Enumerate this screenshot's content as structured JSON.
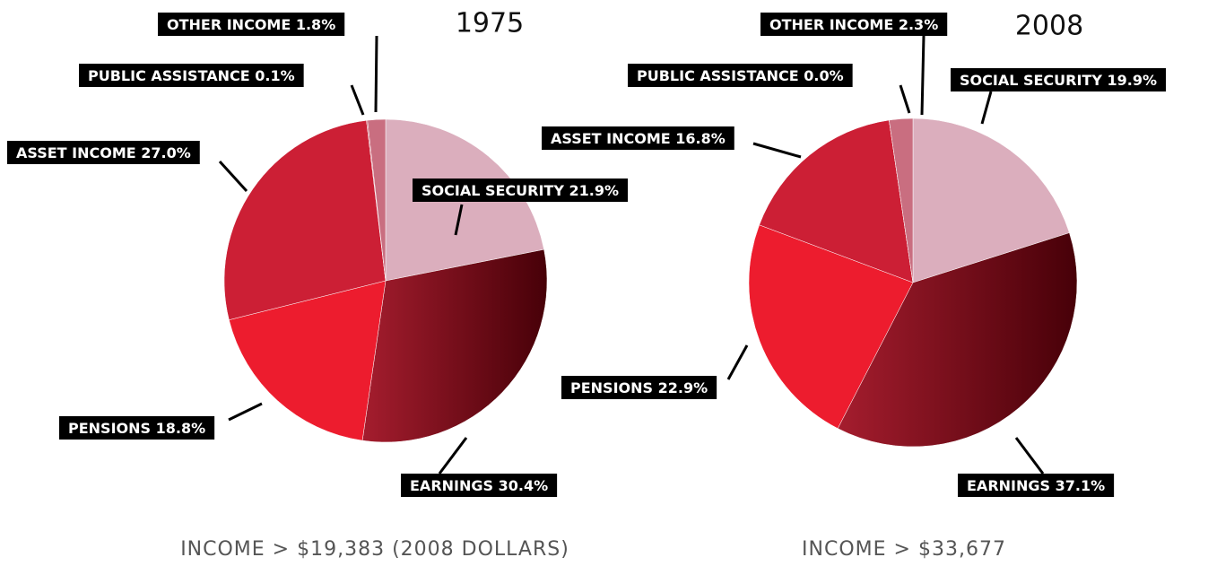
{
  "chart_data": [
    {
      "type": "pie",
      "title": "1975",
      "caption": "INCOME > $19,383 (2008 DOLLARS)",
      "categories": [
        "SOCIAL SECURITY",
        "EARNINGS",
        "PENSIONS",
        "ASSET INCOME",
        "PUBLIC ASSISTANCE",
        "OTHER INCOME"
      ],
      "values": [
        21.9,
        30.4,
        18.8,
        27.0,
        0.1,
        1.8
      ],
      "value_labels": [
        "21.9%",
        "30.4%",
        "18.8%",
        "27.0%",
        "0.1%",
        "1.8%"
      ],
      "colors": [
        "#dbaebd",
        "#8e1424",
        "#ed1c2e",
        "#cc1f35",
        "#c0394e",
        "#c96e80"
      ]
    },
    {
      "type": "pie",
      "title": "2008",
      "caption": "INCOME > $33,677",
      "categories": [
        "SOCIAL SECURITY",
        "EARNINGS",
        "PENSIONS",
        "ASSET INCOME",
        "PUBLIC ASSISTANCE",
        "OTHER INCOME"
      ],
      "values": [
        19.9,
        37.1,
        22.9,
        16.8,
        0.0,
        2.3
      ],
      "value_labels": [
        "19.9%",
        "37.1%",
        "22.9%",
        "16.8%",
        "0.0%",
        "2.3%"
      ],
      "colors": [
        "#dbaebd",
        "#8e1424",
        "#ed1c2e",
        "#cc1f35",
        "#c0394e",
        "#c96e80"
      ]
    }
  ]
}
